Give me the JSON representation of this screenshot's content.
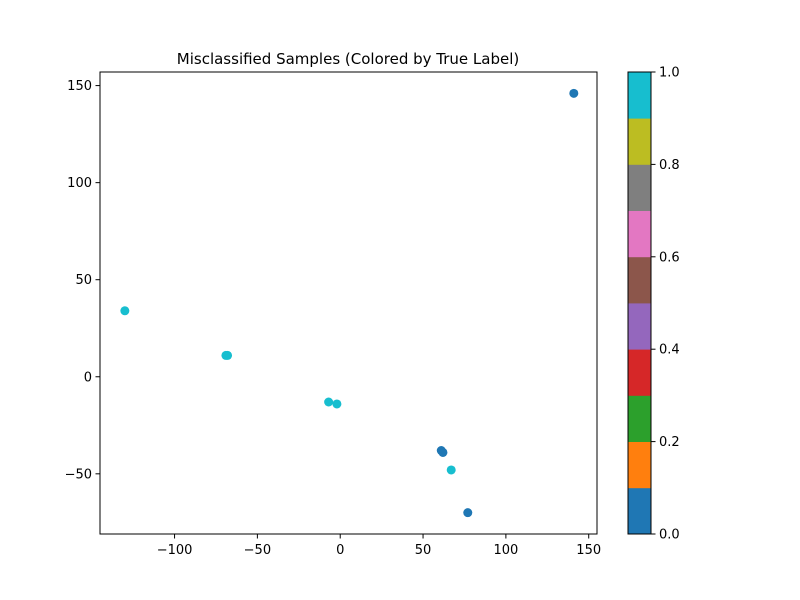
{
  "chart_data": {
    "type": "scatter",
    "title": "Misclassified Samples (Colored by True Label)",
    "xlabel": "",
    "ylabel": "",
    "xlim": [
      -145,
      155
    ],
    "ylim": [
      -81,
      157
    ],
    "x_ticks": [
      -100,
      -50,
      0,
      50,
      100,
      150
    ],
    "x_tick_labels": [
      "−100",
      "−50",
      "0",
      "50",
      "100",
      "150"
    ],
    "y_ticks": [
      -50,
      0,
      50,
      100,
      150
    ],
    "y_tick_labels": [
      "−50",
      "0",
      "50",
      "100",
      "150"
    ],
    "grid": false,
    "points": [
      {
        "x": -130,
        "y": 34,
        "label": 1
      },
      {
        "x": -68,
        "y": 11,
        "label": 1
      },
      {
        "x": -69,
        "y": 11,
        "label": 1
      },
      {
        "x": -7,
        "y": -13,
        "label": 1
      },
      {
        "x": -2,
        "y": -14,
        "label": 1
      },
      {
        "x": 61,
        "y": -38,
        "label": 0
      },
      {
        "x": 62,
        "y": -39,
        "label": 0
      },
      {
        "x": 67,
        "y": -48,
        "label": 1
      },
      {
        "x": 77,
        "y": -70,
        "label": 0
      },
      {
        "x": 141,
        "y": 146,
        "label": 0
      }
    ],
    "colormap": {
      "name": "tab10",
      "colors": [
        "#1f77b4",
        "#ff7f0e",
        "#2ca02c",
        "#d62728",
        "#9467bd",
        "#8c564b",
        "#e377c2",
        "#7f7f7f",
        "#bcbd22",
        "#17becf"
      ],
      "range": [
        0.0,
        1.0
      ],
      "ticks": [
        0.0,
        0.2,
        0.4,
        0.6,
        0.8,
        1.0
      ],
      "tick_labels": [
        "0.0",
        "0.2",
        "0.4",
        "0.6",
        "0.8",
        "1.0"
      ]
    }
  }
}
